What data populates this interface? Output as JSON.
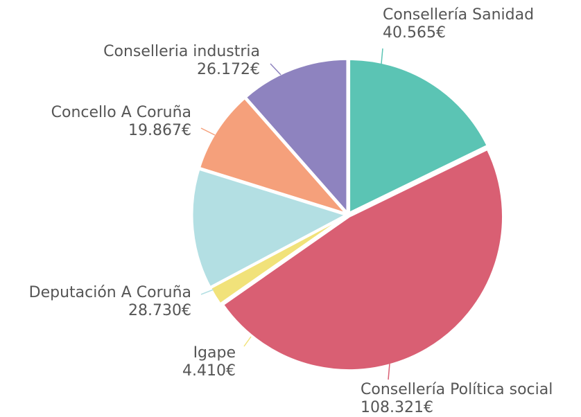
{
  "chart_data": {
    "type": "pie",
    "categories": [
      "Consellería Sanidad",
      "Consellería Política social",
      "Igape",
      "Deputación A Coruña",
      "Concello A Coruña",
      "Conselleria industria"
    ],
    "values": [
      40565,
      108321,
      4410,
      28730,
      19867,
      26172
    ],
    "value_labels": [
      "40.565€",
      "108.321€",
      "4.410€",
      "28.730€",
      "19.867€",
      "26.172€"
    ],
    "colors": [
      "#5bc4b4",
      "#d95f73",
      "#f1e27a",
      "#b3dfe3",
      "#f5a07b",
      "#8e83bf"
    ]
  }
}
